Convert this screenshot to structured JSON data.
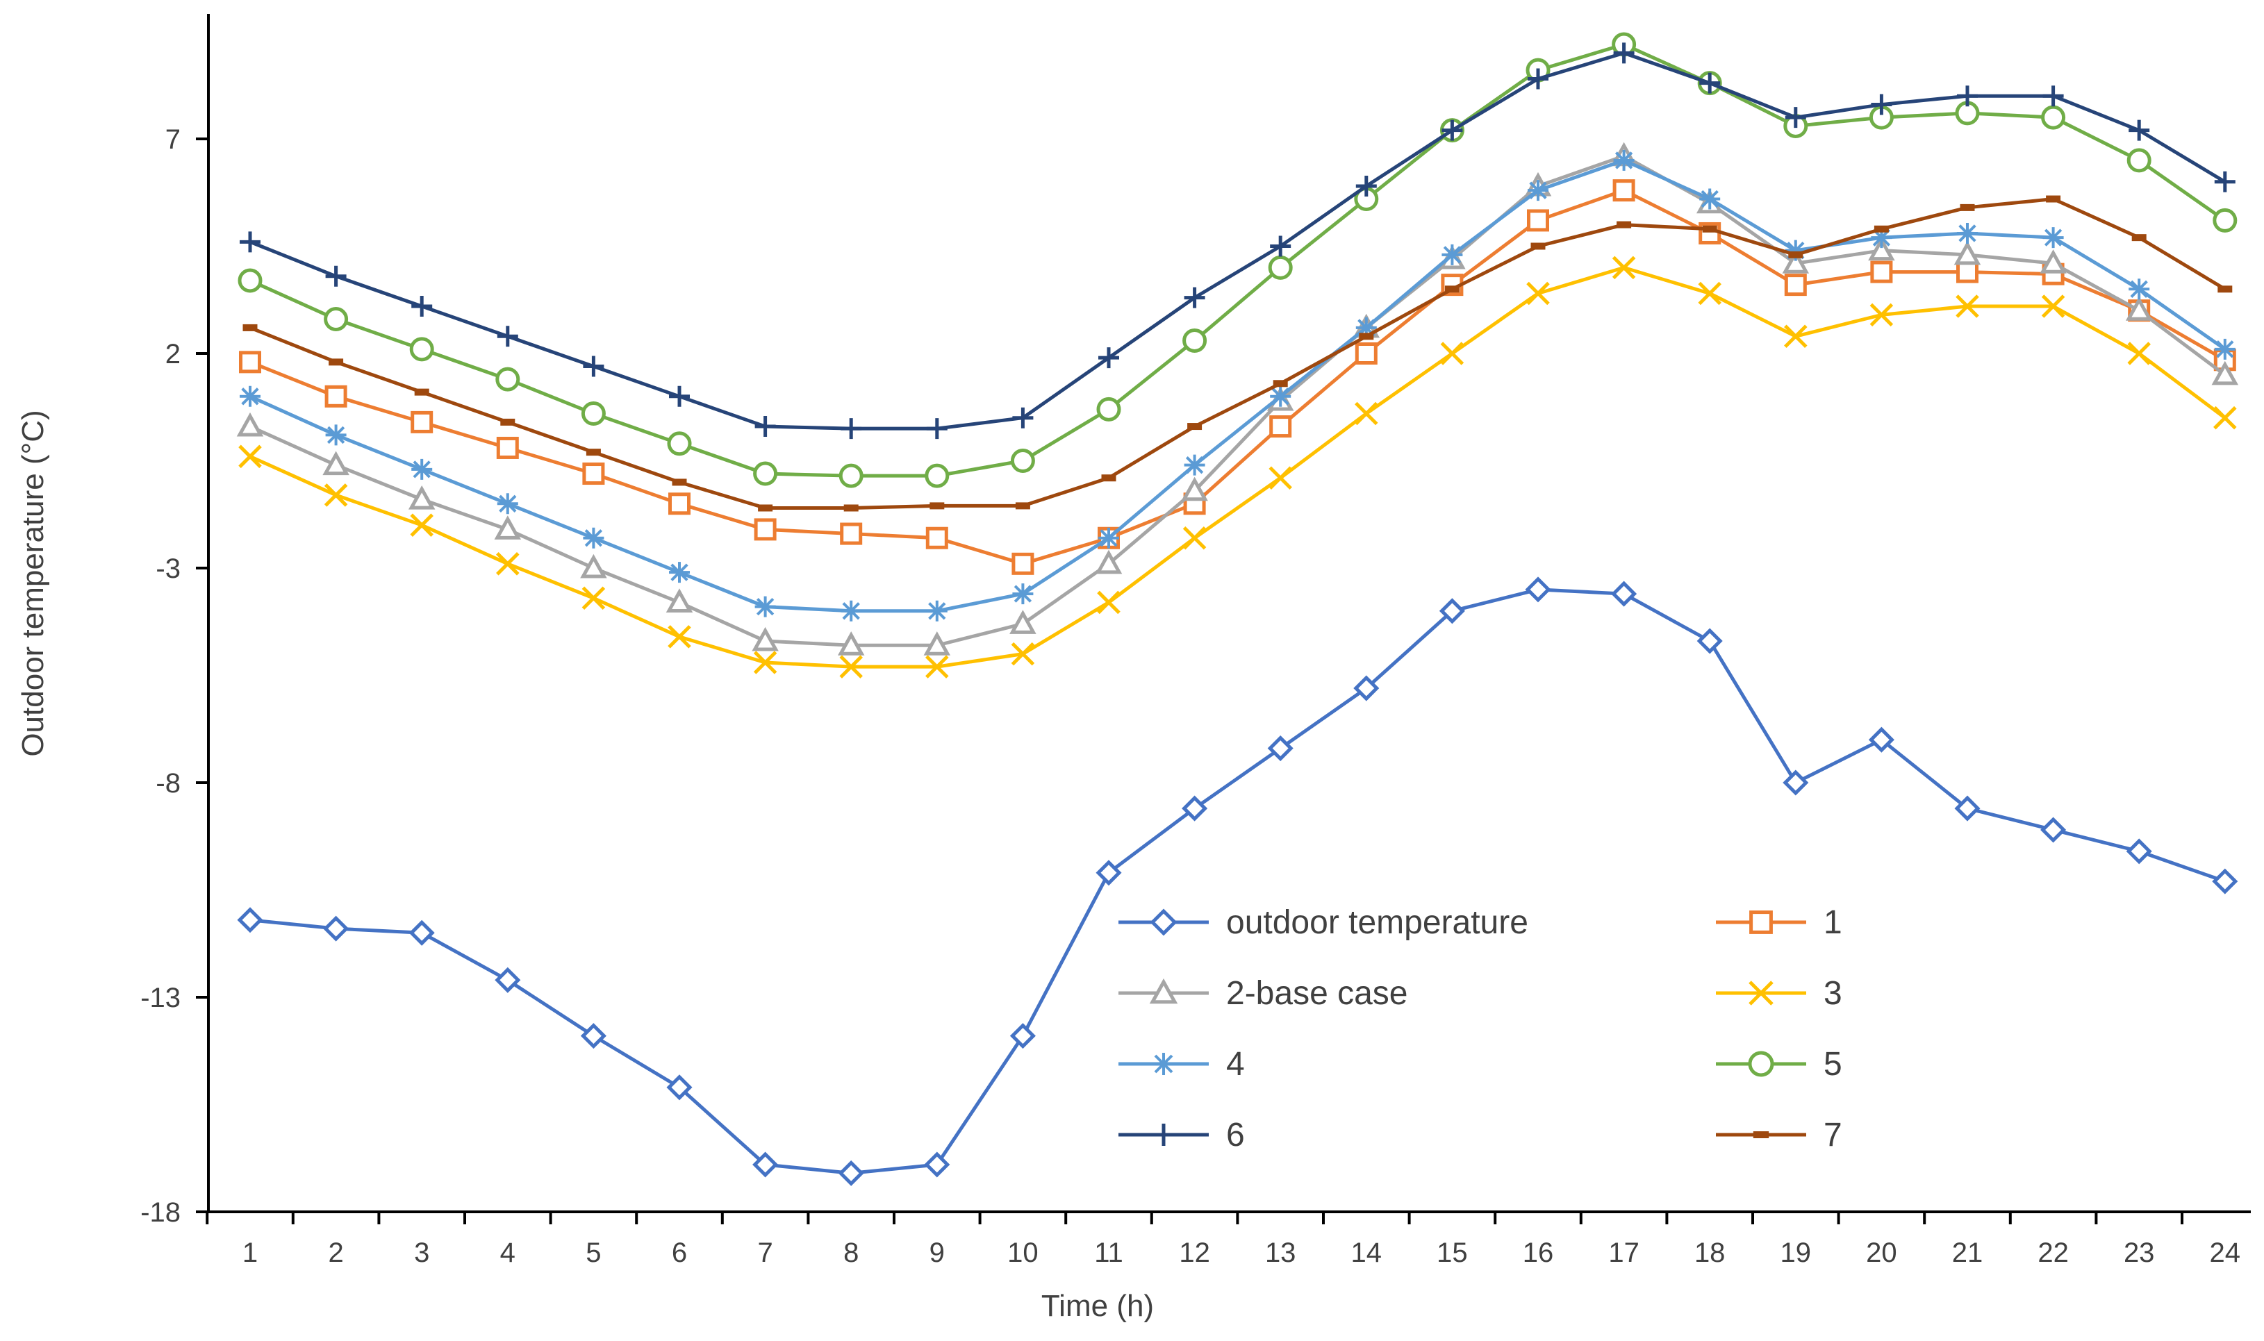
{
  "chart_data": {
    "type": "line",
    "title": "",
    "xlabel": "Time (h)",
    "ylabel": "Outdoor temperature (°C)",
    "x": [
      1,
      2,
      3,
      4,
      5,
      6,
      7,
      8,
      9,
      10,
      11,
      12,
      13,
      14,
      15,
      16,
      17,
      18,
      19,
      20,
      21,
      22,
      23,
      24
    ],
    "x_tick_labels": [
      "1",
      "2",
      "3",
      "4",
      "5",
      "6",
      "7",
      "8",
      "9",
      "10",
      "11",
      "12",
      "13",
      "14",
      "15",
      "16",
      "17",
      "18",
      "19",
      "20",
      "21",
      "22",
      "23",
      "24"
    ],
    "ylim": [
      -18,
      10.5
    ],
    "yticks": [
      -18,
      -13,
      -8,
      -3,
      2,
      7
    ],
    "y_tick_labels": [
      "-18",
      "-13",
      "-8",
      "-3",
      "2",
      "7"
    ],
    "grid": false,
    "legend_placement": "bottom-right",
    "series": [
      {
        "name": "outdoor temperature",
        "color": "#4472C4",
        "marker": "diamond",
        "values": [
          -11.2,
          -11.4,
          -11.5,
          -12.6,
          -13.9,
          -15.1,
          -16.9,
          -17.1,
          -16.9,
          -13.9,
          -10.1,
          -8.6,
          -7.2,
          -5.8,
          -4.0,
          -3.5,
          -3.6,
          -4.7,
          -8.0,
          -7.0,
          -8.6,
          -9.1,
          -9.6,
          -10.3
        ]
      },
      {
        "name": "1",
        "color": "#ED7D31",
        "marker": "square",
        "values": [
          1.8,
          1.0,
          0.4,
          -0.2,
          -0.8,
          -1.5,
          -2.1,
          -2.2,
          -2.3,
          -2.9,
          -2.3,
          -1.5,
          0.3,
          2.0,
          3.6,
          5.1,
          5.8,
          4.8,
          3.6,
          3.9,
          3.9,
          3.85,
          3.0,
          1.85
        ]
      },
      {
        "name": "2-base case",
        "color": "#A5A5A5",
        "marker": "triangle",
        "values": [
          0.3,
          -0.6,
          -1.4,
          -2.1,
          -3.0,
          -3.8,
          -4.7,
          -4.8,
          -4.8,
          -4.3,
          -2.9,
          -1.2,
          0.9,
          2.6,
          4.2,
          5.9,
          6.6,
          5.5,
          4.1,
          4.4,
          4.3,
          4.1,
          3.0,
          1.5
        ]
      },
      {
        "name": "3",
        "color": "#FFC000",
        "marker": "x",
        "values": [
          -0.4,
          -1.3,
          -2.0,
          -2.9,
          -3.7,
          -4.6,
          -5.2,
          -5.3,
          -5.3,
          -5.0,
          -3.8,
          -2.3,
          -0.9,
          0.6,
          2.0,
          3.4,
          4.0,
          3.4,
          2.4,
          2.9,
          3.1,
          3.1,
          2.0,
          0.5
        ]
      },
      {
        "name": "4",
        "color": "#5B9BD5",
        "marker": "asterisk",
        "values": [
          1.0,
          0.1,
          -0.7,
          -1.5,
          -2.3,
          -3.1,
          -3.9,
          -4.0,
          -4.0,
          -3.6,
          -2.3,
          -0.6,
          1.0,
          2.6,
          4.3,
          5.8,
          6.5,
          5.6,
          4.4,
          4.7,
          4.8,
          4.7,
          3.5,
          2.1
        ]
      },
      {
        "name": "5",
        "color": "#70AD47",
        "marker": "circle",
        "values": [
          3.7,
          2.8,
          2.1,
          1.4,
          0.6,
          -0.1,
          -0.8,
          -0.85,
          -0.85,
          -0.5,
          0.7,
          2.3,
          4.0,
          5.6,
          7.2,
          8.6,
          9.2,
          8.3,
          7.3,
          7.5,
          7.6,
          7.5,
          6.5,
          5.1
        ]
      },
      {
        "name": "6",
        "color": "#264478",
        "marker": "plus",
        "values": [
          4.6,
          3.8,
          3.1,
          2.4,
          1.7,
          1.0,
          0.3,
          0.25,
          0.25,
          0.5,
          1.9,
          3.3,
          4.5,
          5.9,
          7.2,
          8.4,
          9.0,
          8.3,
          7.5,
          7.8,
          8.0,
          8.0,
          7.2,
          6.0
        ]
      },
      {
        "name": "7",
        "color": "#9E480E",
        "marker": "dash",
        "values": [
          2.6,
          1.8,
          1.1,
          0.4,
          -0.3,
          -1.0,
          -1.6,
          -1.6,
          -1.55,
          -1.55,
          -0.9,
          0.3,
          1.3,
          2.4,
          3.5,
          4.5,
          5.0,
          4.9,
          4.3,
          4.9,
          5.4,
          5.6,
          4.7,
          3.5
        ]
      }
    ]
  }
}
